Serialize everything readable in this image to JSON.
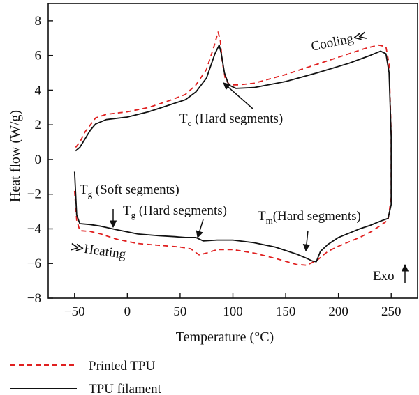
{
  "chart_data": {
    "type": "line",
    "xlabel": "Temperature (°C)",
    "ylabel": "Heat flow (W/g)",
    "xlim": [
      -75,
      275
    ],
    "ylim": [
      -8,
      9
    ],
    "xticks": [
      -50,
      0,
      50,
      100,
      150,
      200,
      250
    ],
    "yticks": [
      8,
      6,
      4,
      2,
      0,
      -2,
      -4,
      -6,
      -8
    ],
    "grid": false,
    "legend_position": "bottom-left",
    "series": [
      {
        "name": "Printed TPU",
        "color": "#e02020",
        "dash": "dashed",
        "cooling": [
          [
            -49,
            0.7
          ],
          [
            -45,
            1.0
          ],
          [
            -40,
            1.6
          ],
          [
            -35,
            2.0
          ],
          [
            -30,
            2.4
          ],
          [
            -20,
            2.6
          ],
          [
            0,
            2.75
          ],
          [
            20,
            3.0
          ],
          [
            40,
            3.4
          ],
          [
            55,
            3.75
          ],
          [
            65,
            4.3
          ],
          [
            75,
            5.2
          ],
          [
            82,
            6.5
          ],
          [
            86,
            7.35
          ],
          [
            88,
            6.9
          ],
          [
            90,
            5.6
          ],
          [
            93,
            4.6
          ],
          [
            97,
            4.3
          ],
          [
            105,
            4.3
          ],
          [
            120,
            4.4
          ],
          [
            150,
            4.9
          ],
          [
            180,
            5.5
          ],
          [
            210,
            6.1
          ],
          [
            225,
            6.4
          ],
          [
            238,
            6.6
          ],
          [
            245,
            6.5
          ],
          [
            248,
            5.5
          ],
          [
            250,
            1.5
          ]
        ],
        "heating": [
          [
            250,
            -2.2
          ],
          [
            247,
            -3.5
          ],
          [
            240,
            -3.8
          ],
          [
            230,
            -4.2
          ],
          [
            220,
            -4.5
          ],
          [
            200,
            -5.0
          ],
          [
            190,
            -5.3
          ],
          [
            180,
            -5.8
          ],
          [
            170,
            -6.1
          ],
          [
            160,
            -6.05
          ],
          [
            140,
            -5.7
          ],
          [
            120,
            -5.4
          ],
          [
            100,
            -5.2
          ],
          [
            85,
            -5.2
          ],
          [
            75,
            -5.4
          ],
          [
            68,
            -5.5
          ],
          [
            60,
            -5.15
          ],
          [
            50,
            -5.05
          ],
          [
            30,
            -4.95
          ],
          [
            10,
            -4.85
          ],
          [
            -10,
            -4.6
          ],
          [
            -25,
            -4.3
          ],
          [
            -35,
            -4.15
          ],
          [
            -45,
            -4.1
          ],
          [
            -48,
            -3.5
          ],
          [
            -50,
            -1.8
          ]
        ]
      },
      {
        "name": "TPU filament",
        "color": "#111111",
        "dash": "solid",
        "cooling": [
          [
            -49,
            0.5
          ],
          [
            -45,
            0.7
          ],
          [
            -40,
            1.2
          ],
          [
            -35,
            1.7
          ],
          [
            -30,
            2.05
          ],
          [
            -20,
            2.3
          ],
          [
            0,
            2.45
          ],
          [
            20,
            2.75
          ],
          [
            40,
            3.15
          ],
          [
            55,
            3.45
          ],
          [
            65,
            3.9
          ],
          [
            75,
            4.7
          ],
          [
            83,
            6.1
          ],
          [
            87,
            6.6
          ],
          [
            89,
            6.1
          ],
          [
            92,
            5.0
          ],
          [
            96,
            4.3
          ],
          [
            103,
            4.1
          ],
          [
            120,
            4.15
          ],
          [
            150,
            4.5
          ],
          [
            180,
            5.0
          ],
          [
            210,
            5.55
          ],
          [
            230,
            6.0
          ],
          [
            240,
            6.25
          ],
          [
            245,
            6.1
          ],
          [
            248,
            5.0
          ],
          [
            250,
            1.3
          ]
        ],
        "heating": [
          [
            250,
            -2.6
          ],
          [
            247,
            -3.4
          ],
          [
            240,
            -3.55
          ],
          [
            230,
            -3.8
          ],
          [
            220,
            -4.0
          ],
          [
            200,
            -4.5
          ],
          [
            190,
            -4.9
          ],
          [
            183,
            -5.3
          ],
          [
            179,
            -5.9
          ],
          [
            175,
            -5.85
          ],
          [
            170,
            -5.7
          ],
          [
            160,
            -5.45
          ],
          [
            140,
            -5.05
          ],
          [
            120,
            -4.8
          ],
          [
            100,
            -4.65
          ],
          [
            85,
            -4.65
          ],
          [
            72,
            -4.7
          ],
          [
            65,
            -4.5
          ],
          [
            55,
            -4.5
          ],
          [
            45,
            -4.45
          ],
          [
            30,
            -4.4
          ],
          [
            10,
            -4.3
          ],
          [
            -10,
            -4.05
          ],
          [
            -25,
            -3.85
          ],
          [
            -35,
            -3.75
          ],
          [
            -45,
            -3.7
          ],
          [
            -48,
            -3.2
          ],
          [
            -50,
            -0.7
          ]
        ]
      }
    ],
    "annotations": [
      {
        "id": "tc",
        "main": "T",
        "sub": "c",
        "rest": " (Hard segments)",
        "at": [
          88,
          4.2
        ],
        "arrow_to": [
          88,
          4.3
        ]
      },
      {
        "id": "tg-soft",
        "main": "T",
        "sub": "g",
        "rest": " (Soft segments)",
        "at": [
          -14,
          -4.1
        ],
        "arrow_to": [
          -14,
          -3.9
        ]
      },
      {
        "id": "tg-hard",
        "main": "T",
        "sub": "g",
        "rest": " (Hard segments)",
        "at": [
          68,
          -4.65
        ],
        "arrow_to": [
          68,
          -4.6
        ]
      },
      {
        "id": "tm",
        "main": "T",
        "sub": "m",
        "rest": "(Hard segments)",
        "at": [
          172,
          -5.4
        ],
        "arrow_to": [
          172,
          -5.4
        ]
      },
      {
        "id": "cooling",
        "text": "Cooling≪"
      },
      {
        "id": "heating",
        "text": "≫Heating"
      },
      {
        "id": "exo",
        "text": "Exo"
      }
    ]
  },
  "legend": {
    "printed_label": "Printed TPU",
    "filament_label": "TPU filament"
  }
}
